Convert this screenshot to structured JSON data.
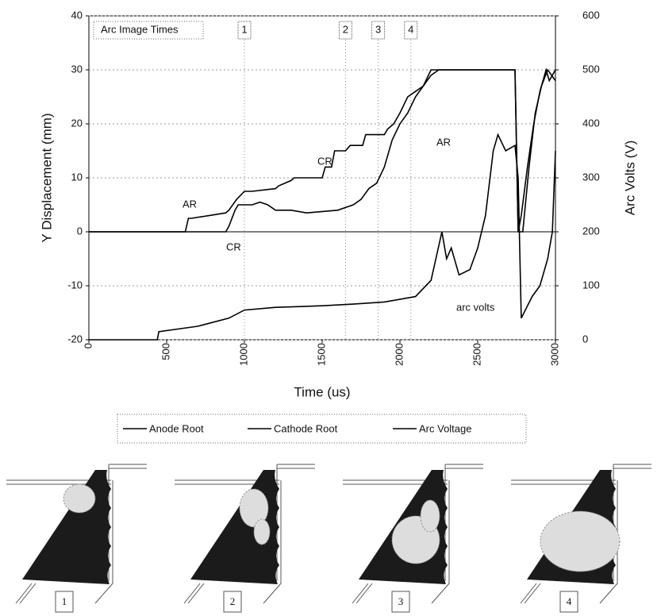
{
  "chart_data": {
    "type": "line",
    "xlabel": "Time (us)",
    "ylabel": "Y Displacement (mm)",
    "y2label": "Arc Volts (V)",
    "xlim": [
      0,
      3000
    ],
    "xticks": [
      0,
      500,
      1000,
      1500,
      2000,
      2500,
      3000
    ],
    "ylim": [
      -20,
      40
    ],
    "yticks": [
      -20,
      -10,
      0,
      10,
      20,
      30,
      40
    ],
    "y2lim": [
      0,
      600
    ],
    "y2ticks": [
      0,
      100,
      200,
      300,
      400,
      500,
      600
    ],
    "grid": true,
    "series": [
      {
        "name": "Anode Root",
        "color": "#000000",
        "x": [
          0,
          620,
          640,
          660,
          880,
          900,
          950,
          1000,
          1050,
          1200,
          1220,
          1300,
          1320,
          1500,
          1520,
          1560,
          1580,
          1650,
          1680,
          1760,
          1780,
          1900,
          1920,
          1960,
          2000,
          2050,
          2100,
          2150,
          2200,
          2240,
          2740,
          2760,
          2780,
          2820,
          2860,
          2900,
          2940,
          2960,
          3000
        ],
        "values": [
          0,
          0,
          2.5,
          2.5,
          3.5,
          4,
          6,
          7.5,
          7.5,
          8,
          8.5,
          9.5,
          10,
          10,
          12,
          12,
          15,
          15,
          16,
          16,
          18,
          18,
          19,
          20,
          22,
          25,
          26,
          27,
          30,
          30,
          30,
          0,
          3,
          12,
          20,
          26,
          30,
          28,
          30
        ]
      },
      {
        "name": "Cathode Root",
        "color": "#000000",
        "x": [
          0,
          880,
          900,
          940,
          960,
          1050,
          1100,
          1150,
          1200,
          1300,
          1400,
          1600,
          1700,
          1750,
          1800,
          1850,
          1900,
          1950,
          2000,
          2050,
          2100,
          2150,
          2200,
          2250,
          2740,
          2760,
          2790,
          2830,
          2870,
          2910,
          2950,
          3000
        ],
        "values": [
          0,
          0,
          1,
          4,
          5,
          5,
          5.5,
          5,
          4,
          4,
          3.5,
          4,
          5,
          6,
          8,
          9,
          12,
          17,
          20,
          22,
          25,
          27,
          29,
          30,
          30,
          0,
          0,
          12,
          22,
          27,
          30,
          28
        ]
      },
      {
        "name": "Arc Voltage",
        "color": "#000000",
        "axis": "y2",
        "x": [
          0,
          440,
          450,
          700,
          900,
          1000,
          1200,
          1500,
          1700,
          1900,
          2100,
          2200,
          2270,
          2300,
          2330,
          2380,
          2450,
          2500,
          2550,
          2600,
          2630,
          2680,
          2740,
          2760,
          2780,
          2850,
          2900,
          2950,
          2980,
          3000
        ],
        "values": [
          0,
          0,
          15,
          25,
          40,
          55,
          60,
          63,
          66,
          70,
          80,
          110,
          200,
          150,
          170,
          120,
          130,
          170,
          230,
          350,
          380,
          350,
          360,
          300,
          40,
          80,
          100,
          150,
          200,
          350
        ]
      }
    ],
    "markers": {
      "title": "Arc Image Times",
      "x": [
        1000,
        1650,
        1860,
        2070
      ],
      "labels": [
        "1",
        "2",
        "3",
        "4"
      ]
    },
    "annotations": [
      "AR",
      "CR",
      "CR",
      "AR",
      "arc volts"
    ]
  },
  "figure_panels": {
    "labels": [
      "1",
      "2",
      "3",
      "4"
    ]
  }
}
